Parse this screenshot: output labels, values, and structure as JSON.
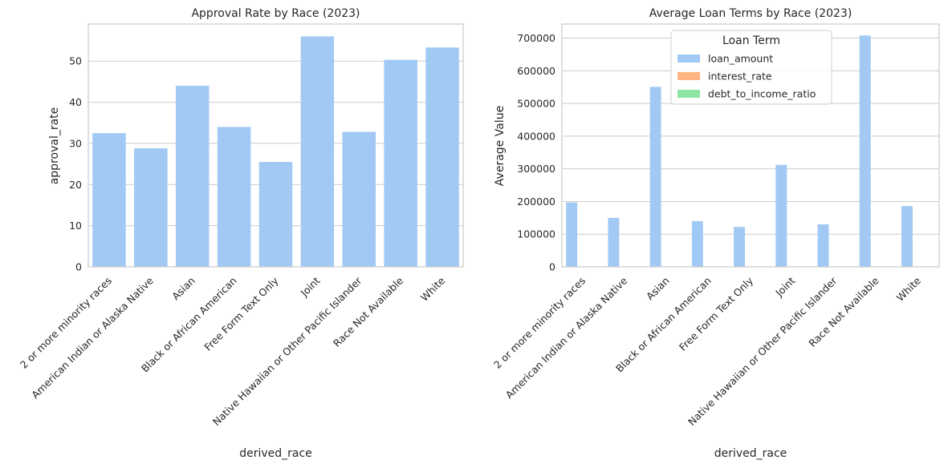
{
  "colors": {
    "background": "#ffffff",
    "grid": "#cccccc",
    "spine": "#cccccc",
    "loan_amount": "#a1c9f4",
    "interest_rate": "#ffb482",
    "debt_to_income_ratio": "#8de5a1"
  },
  "chart_data": [
    {
      "type": "bar",
      "title": "Approval Rate by Race (2023)",
      "xlabel": "derived_race",
      "ylabel": "approval_rate",
      "categories": [
        "2 or more minority races",
        "American Indian or Alaska Native",
        "Asian",
        "Black or African American",
        "Free Form Text Only",
        "Joint",
        "Native Hawaiian or Other Pacific Islander",
        "Race Not Available",
        "White"
      ],
      "values": [
        32.5,
        28.8,
        44.0,
        34.0,
        25.5,
        56.0,
        32.8,
        50.3,
        53.3
      ],
      "ylim": [
        0,
        59
      ],
      "yticks": [
        0,
        10,
        20,
        30,
        40,
        50
      ],
      "grid": "horizontal",
      "legend": "none"
    },
    {
      "type": "bar",
      "title": "Average Loan Terms by Race (2023)",
      "xlabel": "derived_race",
      "ylabel": "Average Value",
      "categories": [
        "2 or more minority races",
        "American Indian or Alaska Native",
        "Asian",
        "Black or African American",
        "Free Form Text Only",
        "Joint",
        "Native Hawaiian or Other Pacific Islander",
        "Race Not Available",
        "White"
      ],
      "series": [
        {
          "name": "loan_amount",
          "values": [
            197000,
            150000,
            551000,
            140000,
            122000,
            312000,
            130000,
            708000,
            186000
          ]
        },
        {
          "name": "interest_rate",
          "values": [
            7,
            7,
            6.9,
            7.2,
            7.1,
            7,
            7.1,
            7.2,
            6.9
          ]
        },
        {
          "name": "debt_to_income_ratio",
          "values": [
            0,
            0,
            0,
            0,
            0,
            0,
            0,
            0,
            0
          ]
        }
      ],
      "ylim": [
        0,
        743000
      ],
      "yticks": [
        0,
        100000,
        200000,
        300000,
        400000,
        500000,
        600000,
        700000
      ],
      "grid": "horizontal",
      "legend_title": "Loan Term",
      "legend": "upper-center"
    }
  ]
}
